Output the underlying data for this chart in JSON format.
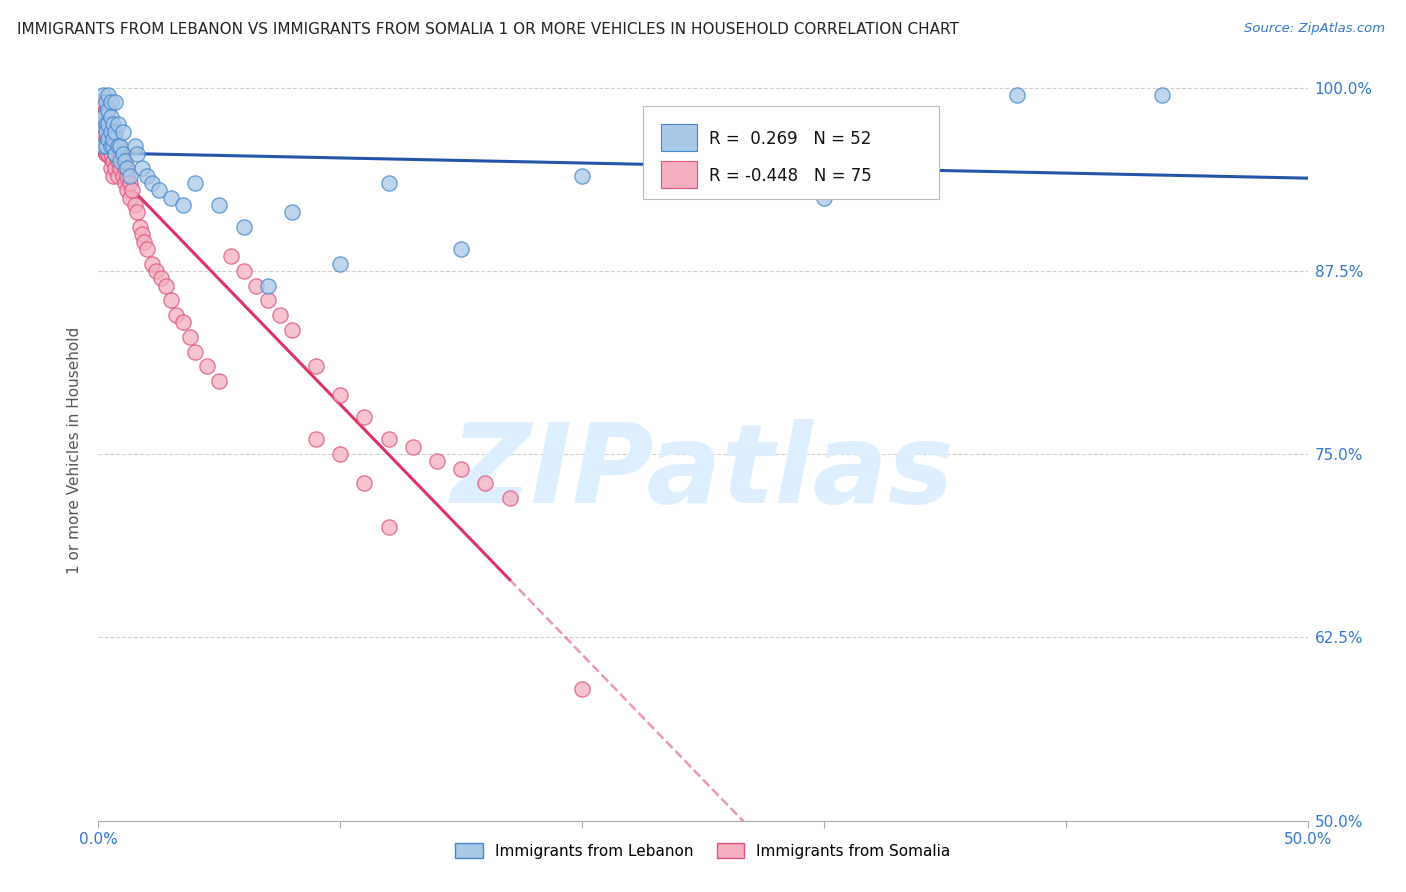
{
  "title": "IMMIGRANTS FROM LEBANON VS IMMIGRANTS FROM SOMALIA 1 OR MORE VEHICLES IN HOUSEHOLD CORRELATION CHART",
  "source": "Source: ZipAtlas.com",
  "ylabel": "1 or more Vehicles in Household",
  "xlim": [
    0.0,
    0.5
  ],
  "ylim": [
    0.5,
    1.005
  ],
  "xticks": [
    0.0,
    0.1,
    0.2,
    0.3,
    0.4,
    0.5
  ],
  "xticklabels": [
    "0.0%",
    "",
    "",
    "",
    "",
    "50.0%"
  ],
  "yticks": [
    0.5,
    0.625,
    0.75,
    0.875,
    1.0
  ],
  "yticklabels_right": [
    "50.0%",
    "62.5%",
    "75.0%",
    "87.5%",
    "100.0%"
  ],
  "lebanon_R": 0.269,
  "lebanon_N": 52,
  "somalia_R": -0.448,
  "somalia_N": 75,
  "lebanon_color": "#a8c8e8",
  "somalia_color": "#f4b0c0",
  "lebanon_edge_color": "#4488cc",
  "somalia_edge_color": "#e05080",
  "lebanon_trend_color": "#2255aa",
  "somalia_trend_color": "#dd3366",
  "watermark": "ZIPatlas",
  "watermark_color": "#ddeeff",
  "legend_R1_color": "#2255aa",
  "legend_R2_color": "#dd3366",
  "lebanon_x": [
    0.001,
    0.002,
    0.002,
    0.002,
    0.003,
    0.003,
    0.003,
    0.003,
    0.004,
    0.004,
    0.004,
    0.004,
    0.005,
    0.005,
    0.005,
    0.005,
    0.006,
    0.006,
    0.006,
    0.007,
    0.007,
    0.007,
    0.008,
    0.008,
    0.009,
    0.009,
    0.01,
    0.01,
    0.011,
    0.012,
    0.013,
    0.015,
    0.016,
    0.018,
    0.02,
    0.022,
    0.025,
    0.03,
    0.035,
    0.04,
    0.05,
    0.06,
    0.07,
    0.08,
    0.1,
    0.12,
    0.15,
    0.2,
    0.25,
    0.3,
    0.38,
    0.44
  ],
  "lebanon_y": [
    0.975,
    0.98,
    0.995,
    0.96,
    0.975,
    0.99,
    0.96,
    0.97,
    0.985,
    0.975,
    0.965,
    0.995,
    0.97,
    0.96,
    0.99,
    0.98,
    0.975,
    0.96,
    0.965,
    0.97,
    0.955,
    0.99,
    0.96,
    0.975,
    0.95,
    0.96,
    0.955,
    0.97,
    0.95,
    0.945,
    0.94,
    0.96,
    0.955,
    0.945,
    0.94,
    0.935,
    0.93,
    0.925,
    0.92,
    0.935,
    0.92,
    0.905,
    0.865,
    0.915,
    0.88,
    0.935,
    0.89,
    0.94,
    0.94,
    0.925,
    0.995,
    0.995
  ],
  "somalia_x": [
    0.001,
    0.001,
    0.002,
    0.002,
    0.002,
    0.003,
    0.003,
    0.003,
    0.003,
    0.004,
    0.004,
    0.004,
    0.004,
    0.005,
    0.005,
    0.005,
    0.005,
    0.006,
    0.006,
    0.006,
    0.006,
    0.007,
    0.007,
    0.007,
    0.008,
    0.008,
    0.008,
    0.009,
    0.009,
    0.01,
    0.01,
    0.011,
    0.011,
    0.012,
    0.012,
    0.013,
    0.013,
    0.014,
    0.015,
    0.016,
    0.017,
    0.018,
    0.019,
    0.02,
    0.022,
    0.024,
    0.026,
    0.028,
    0.03,
    0.032,
    0.035,
    0.038,
    0.04,
    0.045,
    0.05,
    0.055,
    0.06,
    0.065,
    0.07,
    0.075,
    0.08,
    0.09,
    0.1,
    0.11,
    0.12,
    0.13,
    0.14,
    0.15,
    0.16,
    0.17,
    0.09,
    0.1,
    0.11,
    0.12,
    0.2
  ],
  "somalia_y": [
    0.99,
    0.98,
    0.99,
    0.98,
    0.97,
    0.985,
    0.975,
    0.965,
    0.955,
    0.985,
    0.975,
    0.965,
    0.955,
    0.975,
    0.965,
    0.955,
    0.945,
    0.97,
    0.96,
    0.95,
    0.94,
    0.965,
    0.955,
    0.945,
    0.96,
    0.95,
    0.94,
    0.955,
    0.945,
    0.95,
    0.94,
    0.945,
    0.935,
    0.94,
    0.93,
    0.935,
    0.925,
    0.93,
    0.92,
    0.915,
    0.905,
    0.9,
    0.895,
    0.89,
    0.88,
    0.875,
    0.87,
    0.865,
    0.855,
    0.845,
    0.84,
    0.83,
    0.82,
    0.81,
    0.8,
    0.885,
    0.875,
    0.865,
    0.855,
    0.845,
    0.835,
    0.81,
    0.79,
    0.775,
    0.76,
    0.755,
    0.745,
    0.74,
    0.73,
    0.72,
    0.76,
    0.75,
    0.73,
    0.7,
    0.59
  ]
}
